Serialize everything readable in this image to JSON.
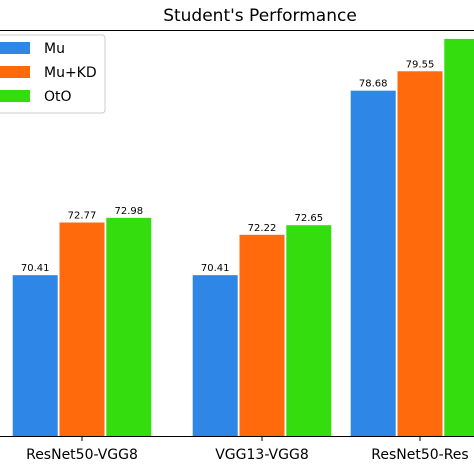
{
  "chart_data": {
    "type": "bar",
    "title": "Student's Performance",
    "categories": [
      "ResNet50-VGG8",
      "VGG13-VGG8",
      "ResNet50-Res"
    ],
    "series": [
      {
        "name": "Mu",
        "color": "#2e86e6",
        "values": [
          70.41,
          70.41,
          78.68
        ]
      },
      {
        "name": "Mu+KD",
        "color": "#ff6a0d",
        "values": [
          72.77,
          72.22,
          79.55
        ]
      },
      {
        "name": "OtO",
        "color": "#33dd0e",
        "values": [
          72.98,
          72.65,
          null
        ]
      }
    ],
    "value_labels": [
      [
        "70.41",
        "70.41",
        "78.68"
      ],
      [
        "72.77",
        "72.22",
        "79.55"
      ],
      [
        "72.98",
        "72.65",
        ""
      ]
    ],
    "partial_values": {
      "OtO": [
        null,
        null,
        "visible bar, label cut off"
      ]
    },
    "xlabel": "",
    "ylabel": "",
    "ylim": [
      63.2,
      81.4
    ],
    "legend": "top-left",
    "grid": false
  }
}
